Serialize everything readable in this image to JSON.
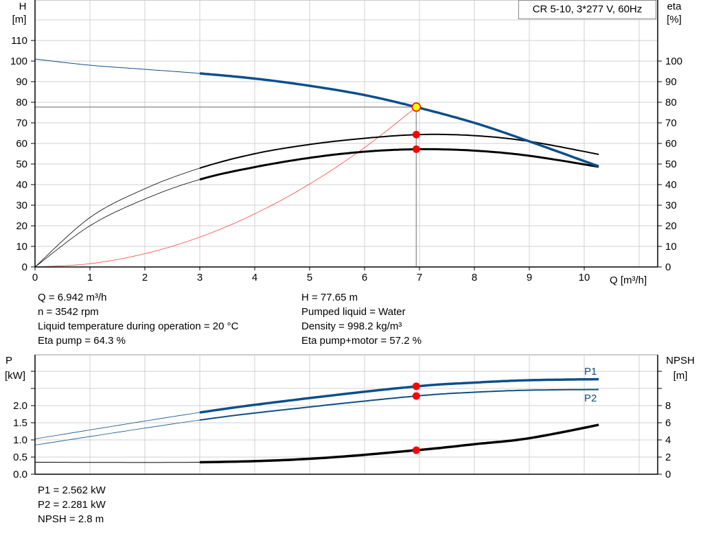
{
  "chart_data": [
    {
      "type": "line",
      "title": "CR 5-10, 3*277 V, 60Hz",
      "xlabel": "Q [m³/h]",
      "ylabel_left": [
        "H",
        "[m]"
      ],
      "ylabel_right": [
        "eta",
        "[%]"
      ],
      "xlim": [
        0,
        11.3
      ],
      "ylim": [
        0,
        130
      ],
      "x_ticks": [
        "0",
        "1",
        "2",
        "3",
        "4",
        "5",
        "6",
        "7",
        "8",
        "9",
        "10"
      ],
      "y_ticks_left": [
        "0",
        "10",
        "20",
        "30",
        "40",
        "50",
        "60",
        "70",
        "80",
        "90",
        "100",
        "110"
      ],
      "y_ticks_right": [
        "0",
        "10",
        "20",
        "30",
        "40",
        "50",
        "60",
        "70",
        "80",
        "90",
        "100"
      ],
      "grid": true,
      "colors": {
        "head": "#0b4f8a",
        "eta": "#000000",
        "system": "#ff4040",
        "point": "#ff0000",
        "op_point": "#ffff00"
      },
      "series": [
        {
          "key": "head",
          "x": [
            0,
            1,
            2,
            3,
            4,
            5,
            6,
            6.942,
            8,
            9,
            10.3
          ],
          "y": [
            101,
            98,
            96,
            94,
            91.5,
            88,
            83.5,
            77.65,
            70,
            61,
            48.5
          ],
          "thick_from": 3
        },
        {
          "key": "eta_pump",
          "x": [
            0,
            1,
            2,
            3,
            4,
            5,
            6,
            7,
            8,
            9,
            10.3
          ],
          "y": [
            0,
            24,
            38,
            48,
            55,
            59.5,
            62.5,
            64.3,
            63.8,
            61,
            54.5
          ],
          "thick_from": 3
        },
        {
          "key": "eta_pump_motor",
          "x": [
            0,
            1,
            2,
            3,
            4,
            5,
            6,
            7,
            8,
            9,
            10.3
          ],
          "y": [
            0,
            20,
            33,
            42.5,
            48.5,
            53,
            56,
            57.2,
            56.5,
            54,
            48.5
          ],
          "thick_from": 3
        },
        {
          "key": "system",
          "x": [
            0,
            1,
            2,
            3,
            4,
            5,
            6,
            6.942
          ],
          "y": [
            0,
            1.61,
            6.45,
            14.5,
            25.8,
            40.3,
            58.0,
            77.65
          ]
        }
      ],
      "operating_point": {
        "Q": 6.942,
        "H": 77.65,
        "eta_pump": 64.3,
        "eta_pump_motor": 57.2
      }
    },
    {
      "type": "line",
      "xlim": [
        0,
        11.3
      ],
      "ylabel_left": [
        "P",
        "[kW]"
      ],
      "ylabel_right": [
        "NPSH",
        "[m]"
      ],
      "ylim_left": [
        0,
        3.5
      ],
      "ylim_right": [
        0,
        14
      ],
      "y_ticks_left": [
        "0.0",
        "0.5",
        "1.0",
        "1.5",
        "2.0"
      ],
      "y_ticks_right": [
        "0",
        "2",
        "4",
        "6",
        "8"
      ],
      "grid": true,
      "colors": {
        "power": "#0b4f8a",
        "npsh": "#000000",
        "point": "#ff0000"
      },
      "series": [
        {
          "name": "P1",
          "x": [
            0,
            3,
            5,
            6.942,
            8,
            9,
            10.3
          ],
          "y": [
            1.03,
            1.8,
            2.22,
            2.56,
            2.67,
            2.74,
            2.77
          ],
          "thick_from": 3
        },
        {
          "name": "P2",
          "x": [
            0,
            3,
            5,
            6.942,
            8,
            9,
            10.3
          ],
          "y": [
            0.85,
            1.58,
            1.96,
            2.28,
            2.39,
            2.45,
            2.47
          ],
          "thick_from": 3
        },
        {
          "key": "npsh",
          "axis": "right",
          "x": [
            0,
            3,
            5,
            6.942,
            8,
            9,
            10.3
          ],
          "y": [
            1.4,
            1.4,
            1.8,
            2.8,
            3.5,
            4.2,
            5.8
          ],
          "thick_from": 3
        }
      ],
      "operating_point": {
        "P1": 2.562,
        "P2": 2.281,
        "NPSH": 2.8
      }
    }
  ],
  "info_top_left": [
    "Q = 6.942 m³/h",
    "n = 3542 rpm",
    "Liquid temperature during operation = 20 °C",
    "Eta pump = 64.3 %"
  ],
  "info_top_right": [
    "H = 77.65 m",
    "Pumped liquid = Water",
    "Density = 998.2 kg/m³",
    "Eta pump+motor = 57.2 %"
  ],
  "info_bottom": [
    "P1 = 2.562 kW",
    "P2 = 2.281 kW",
    "NPSH = 2.8 m"
  ]
}
